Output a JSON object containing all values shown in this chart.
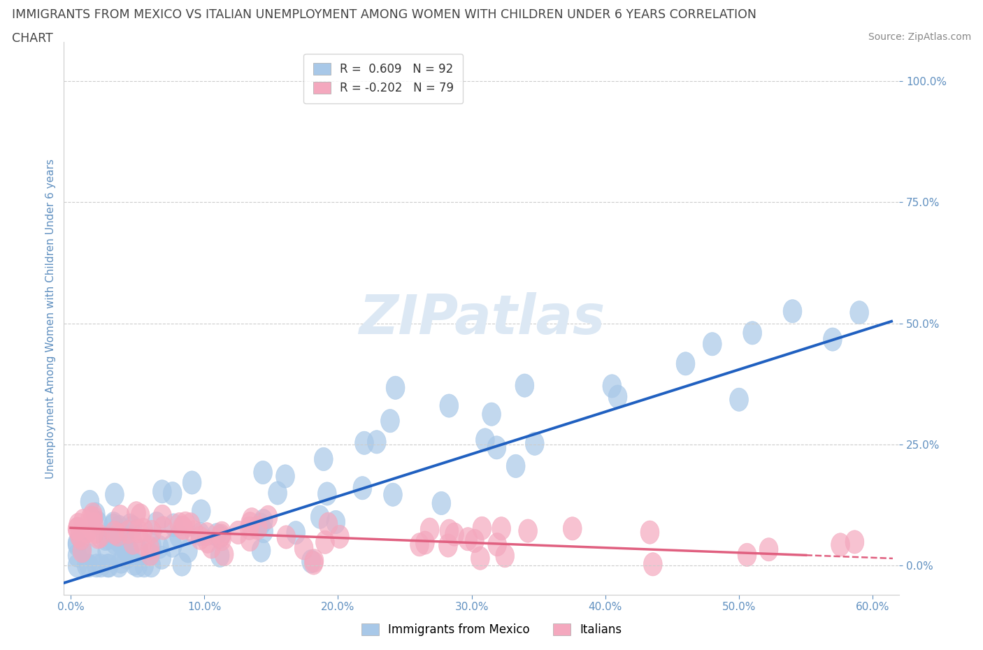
{
  "title_line1": "IMMIGRANTS FROM MEXICO VS ITALIAN UNEMPLOYMENT AMONG WOMEN WITH CHILDREN UNDER 6 YEARS CORRELATION",
  "title_line2": "CHART",
  "source": "Source: ZipAtlas.com",
  "ylabel": "Unemployment Among Women with Children Under 6 years",
  "xlim": [
    -0.005,
    0.62
  ],
  "ylim": [
    -0.06,
    1.08
  ],
  "yticks": [
    0.0,
    0.25,
    0.5,
    0.75,
    1.0
  ],
  "ytick_labels": [
    "0.0%",
    "25.0%",
    "50.0%",
    "75.0%",
    "100.0%"
  ],
  "xticks": [
    0.0,
    0.1,
    0.2,
    0.3,
    0.4,
    0.5,
    0.6
  ],
  "xtick_labels": [
    "0.0%",
    "10.0%",
    "20.0%",
    "30.0%",
    "40.0%",
    "50.0%",
    "60.0%"
  ],
  "blue_color": "#a8c8e8",
  "pink_color": "#f4a8be",
  "blue_line_color": "#2060c0",
  "pink_line_color": "#e06080",
  "grid_color": "#cccccc",
  "tick_color": "#6090c0",
  "watermark_color": "#dce8f4",
  "blue_regline_x": [
    -0.01,
    0.615
  ],
  "blue_regline_y": [
    -0.04,
    0.505
  ],
  "pink_regline_x": [
    0.0,
    0.615
  ],
  "pink_regline_y": [
    0.078,
    0.015
  ],
  "background_color": "#ffffff"
}
